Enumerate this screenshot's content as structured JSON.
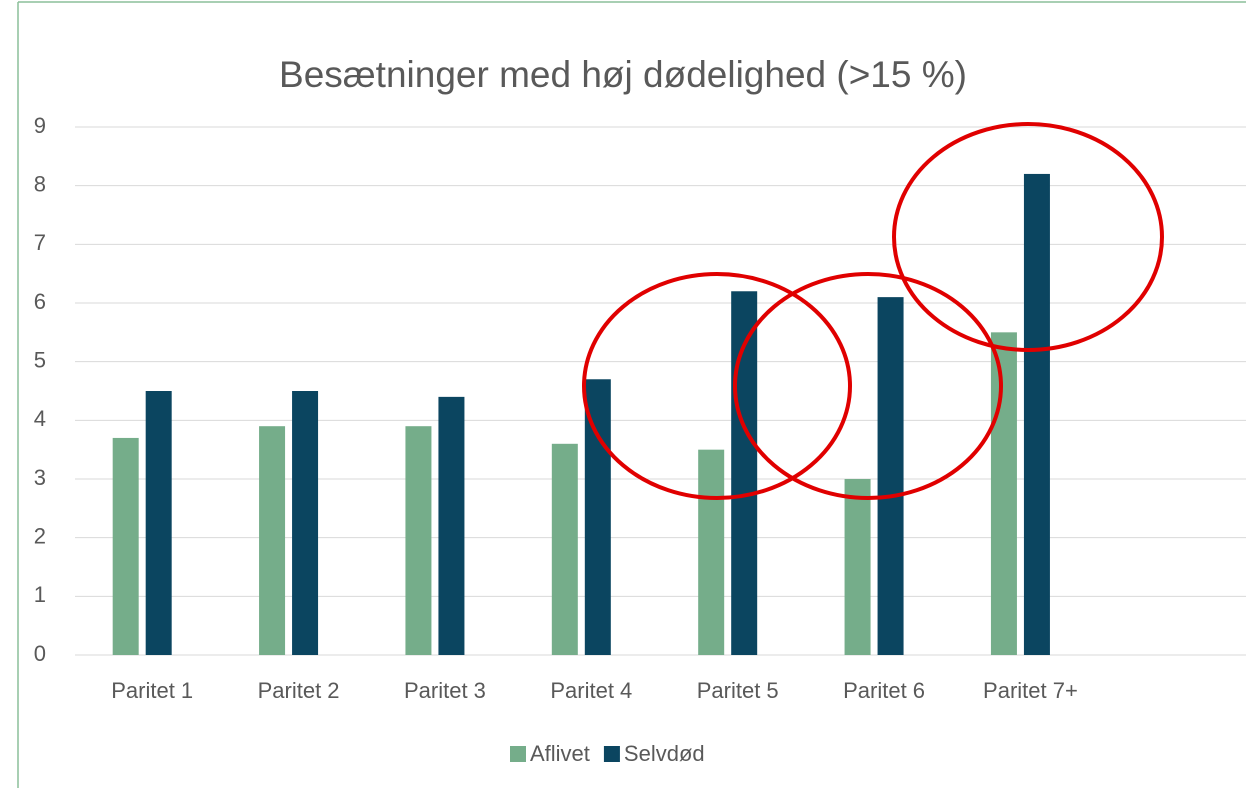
{
  "chart_data": {
    "type": "bar",
    "title": "Besætninger med høj dødelighed (>15 %)",
    "categories": [
      "Paritet 1",
      "Paritet 2",
      "Paritet 3",
      "Paritet 4",
      "Paritet 5",
      "Paritet 6",
      "Paritet 7+",
      null
    ],
    "series": [
      {
        "name": "Aflivet",
        "color": "#75ad8a",
        "values": [
          3.7,
          3.9,
          3.9,
          3.6,
          3.5,
          3.0,
          5.5,
          null
        ]
      },
      {
        "name": "Selvdød",
        "color": "#0b4560",
        "values": [
          4.5,
          4.5,
          4.4,
          4.7,
          6.2,
          6.1,
          8.2,
          null
        ]
      }
    ],
    "ylim": [
      0,
      9
    ],
    "yticks": [
      0,
      1,
      2,
      3,
      4,
      5,
      6,
      7,
      8,
      9
    ],
    "grid": true,
    "legend": "bottom"
  }
}
